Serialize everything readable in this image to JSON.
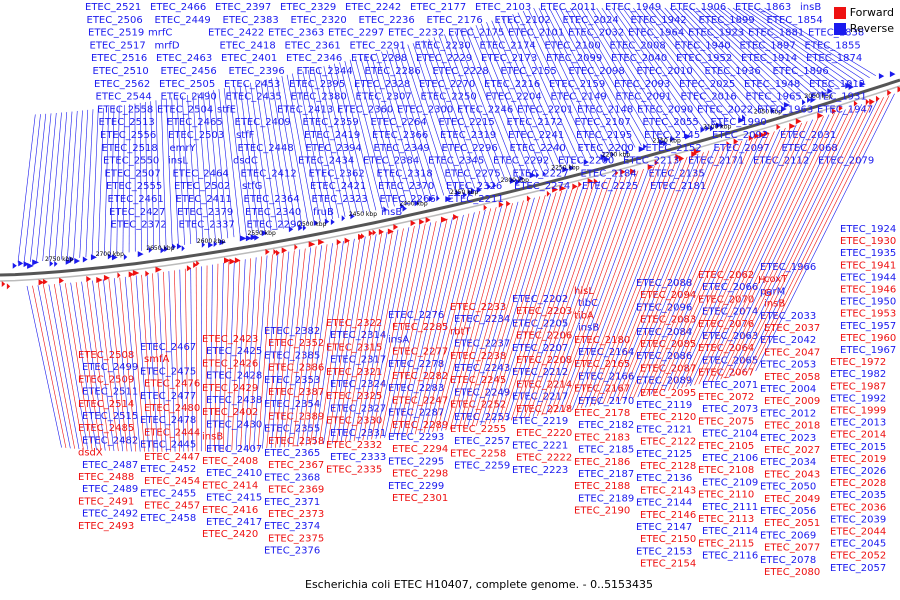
{
  "legend": {
    "forward_label": "Forward",
    "reverse_label": "Reverse",
    "forward_color": "#ee1111",
    "reverse_color": "#1a1aee"
  },
  "caption": "Escherichia coli ETEC H10407, complete genome. - 0..5153435",
  "scale_labels": [
    "2750 kbp",
    "2700 kbp",
    "2650 kbp",
    "2600 kbp",
    "2550 kbp",
    "2500 kbp",
    "2450 kbp",
    "2400 kbp",
    "2350 kbp",
    "2300 kbp",
    "2250 kbp",
    "2200 kbp",
    "2150 kbp",
    "2100 kbp",
    "2050 kbp",
    "2000 kbp"
  ],
  "upper_labels": [
    [
      "ETEC_2521",
      "ETEC_2466",
      "ETEC_2397",
      "ETEC_2329",
      "ETEC_2242",
      "ETEC_2177",
      "ETEC_2103",
      "ETEC_2011",
      "ETEC_1949",
      "ETEC_1906",
      "ETEC_1863",
      "insB"
    ],
    [
      "ETEC_2506",
      "ETEC_2449",
      "ETEC_2383",
      "ETEC_2320",
      "ETEC_2236",
      "ETEC_2176",
      "ETEC_2102",
      "ETEC_2024",
      "ETEC_1942",
      "ETEC_1899",
      "ETEC_1854"
    ],
    [
      "ETEC_2519",
      "mrfC",
      "ETEC_2422",
      "ETEC_2363",
      "ETEC_2297",
      "ETEC_2232",
      "ETEC_2175",
      "ETEC_2101",
      "ETEC_2032",
      "ETEC_1964",
      "ETEC_1923",
      "ETEC_1881",
      "ETEC_1838"
    ],
    [
      "ETEC_2517",
      "mrfD",
      "ETEC_2418",
      "ETEC_2361",
      "ETEC_2291",
      "ETEC_2230",
      "ETEC_2174",
      "ETEC_2100",
      "ETEC_2008",
      "ETEC_1940",
      "ETEC_1897",
      "ETEC_1855"
    ],
    [
      "ETEC_2516",
      "ETEC_2463",
      "ETEC_2401",
      "ETEC_2346",
      "ETEC_2288",
      "ETEC_2229",
      "ETEC_2173",
      "ETEC_2099",
      "ETEC_2040",
      "ETEC_1952",
      "ETEC_1914",
      "ETEC_1874"
    ],
    [
      "ETEC_2510",
      "ETEC_2456",
      "ETEC_2396",
      "ETEC_2344",
      "ETEC_2286",
      "ETEC_2228",
      "ETEC_2155",
      "ETEC_2098",
      "ETEC_2010",
      "ETEC_1936",
      "ETEC_1896"
    ],
    [
      "ETEC_2562",
      "ETEC_2505",
      "ETEC_2453",
      "ETEC_2395",
      "ETEC_2328",
      "ETEC_2270",
      "ETEC_2216",
      "ETEC_2159",
      "ETEC_2093",
      "ETEC_2025",
      "ETEC_1948",
      "ETEC_1912"
    ],
    [
      "ETEC_2544",
      "ETEC_2490",
      "ETEC_2435",
      "ETEC_2380",
      "ETEC_2307",
      "ETEC_2250",
      "ETEC_2204",
      "ETEC_2149",
      "ETEC_2091",
      "ETEC_2016",
      "ETEC_1965",
      "ETEC_1931"
    ],
    [
      "ETEC_2558",
      "ETEC_2504",
      "stfE",
      "ETEC_2413",
      "ETEC_2360",
      "ETEC_2300",
      "ETEC_2246",
      "ETEC_2201",
      "ETEC_2148",
      "ETEC_2090",
      "ETEC_2022",
      "ETEC_1963",
      "ETEC_1947"
    ],
    [
      "ETEC_2513",
      "ETEC_2465",
      "ETEC_2409",
      "ETEC_2359",
      "ETEC_2264",
      "ETEC_2215",
      "ETEC_2172",
      "ETEC_2107",
      "ETEC_2055",
      "ETEC_1990"
    ],
    [
      "ETEC_2556",
      "ETEC_2503",
      "stfF",
      "ETEC_2419",
      "ETEC_2366",
      "ETEC_2319",
      "ETEC_2241",
      "ETEC_2195",
      "ETEC_2145",
      "ETEC_2092",
      "ETEC_2031"
    ],
    [
      "ETEC_2518",
      "emrY",
      "ETEC_2448",
      "ETEC_2394",
      "ETEC_2349",
      "ETEC_2296",
      "ETEC_2240",
      "ETEC_2200",
      "ETEC_2152",
      "ETEC_2097",
      "ETEC_2068"
    ],
    [
      "ETEC_2550",
      "insL",
      "dsdC",
      "ETEC_2434",
      "ETEC_2384",
      "ETEC_2345",
      "ETEC_2292",
      "ETEC_2260",
      "ETEC_2213",
      "ETEC_2171",
      "ETEC_2112",
      "ETEC_2079"
    ],
    [
      "ETEC_2507",
      "ETEC_2464",
      "ETEC_2412",
      "ETEC_2362",
      "ETEC_2318",
      "ETEC_2275",
      "ETEC_2227",
      "ETEC_2184",
      "ETEC_2135"
    ],
    [
      "ETEC_2555",
      "ETEC_2502",
      "stfG",
      "ETEC_2421",
      "ETEC_2370",
      "ETEC_2326",
      "ETEC_2274",
      "ETEC_2225",
      "ETEC_2181"
    ],
    [
      "ETEC_2461",
      "ETEC_2411",
      "ETEC_2364",
      "ETEC_2323",
      "ETEC_2266",
      "ETEC_2211"
    ],
    [
      "ETEC_2427",
      "ETEC_2379",
      "ETEC_2340",
      "fruB",
      "insB"
    ],
    [
      "ETEC_2372",
      "ETEC_2337",
      "ETEC_2290"
    ]
  ],
  "right_labels": [
    "ETEC_1924",
    "ETEC_1930",
    "ETEC_1935",
    "ETEC_1941",
    "ETEC_1944",
    "ETEC_1946",
    "ETEC_1950",
    "ETEC_1953",
    "ETEC_1957",
    "ETEC_1960",
    "ETEC_1967",
    "ETEC_1972",
    "ETEC_1982",
    "ETEC_1987",
    "ETEC_1992",
    "ETEC_1999",
    "ETEC_2013",
    "ETEC_2014",
    "ETEC_2015",
    "ETEC_2019",
    "ETEC_2026",
    "ETEC_2028",
    "ETEC_2035",
    "ETEC_2036",
    "ETEC_2039",
    "ETEC_2044",
    "ETEC_2045",
    "ETEC_2052",
    "ETEC_2057"
  ],
  "lower_labels": [
    [
      "ETEC_1966",
      "coxT",
      "parM",
      "insB",
      "ETEC_2033",
      "ETEC_2037",
      "ETEC_2042",
      "ETEC_2047",
      "ETEC_2053",
      "ETEC_2058",
      "ETEC_2004",
      "ETEC_2009",
      "ETEC_2012",
      "ETEC_2018",
      "ETEC_2023",
      "ETEC_2027",
      "ETEC_2034",
      "ETEC_2043",
      "ETEC_2050",
      "ETEC_2049",
      "ETEC_2056",
      "ETEC_2051",
      "ETEC_2069",
      "ETEC_2077",
      "ETEC_2078",
      "ETEC_2080",
      "ETEC_2081",
      "ETEC_2082"
    ],
    [
      "ETEC_2062",
      "ETEC_2066",
      "ETEC_2070",
      "ETEC_2074",
      "ETEC_2076",
      "ETEC_2063",
      "ETEC_2064",
      "ETEC_2065",
      "ETEC_2067",
      "ETEC_2071",
      "ETEC_2072",
      "ETEC_2073",
      "ETEC_2075",
      "ETEC_2104",
      "ETEC_2105",
      "ETEC_2106",
      "ETEC_2108",
      "ETEC_2109",
      "ETEC_2110",
      "ETEC_2111",
      "ETEC_2113",
      "ETEC_2114",
      "ETEC_2115",
      "ETEC_2116"
    ],
    [
      "ETEC_2088",
      "ETEC_2094",
      "ETEC_2096",
      "ETEC_2083",
      "ETEC_2084",
      "ETEC_2085",
      "ETEC_2086",
      "ETEC_2087",
      "ETEC_2089",
      "ETEC_2095",
      "ETEC_2119",
      "ETEC_2120",
      "ETEC_2121",
      "ETEC_2122",
      "ETEC_2125",
      "ETEC_2128",
      "ETEC_2136",
      "ETEC_2143",
      "ETEC_2144",
      "ETEC_2146",
      "ETEC_2147",
      "ETEC_2150",
      "ETEC_2153",
      "ETEC_2154",
      "ETEC_2156",
      "ETEC_2157",
      "ETEC_2158"
    ],
    [
      "hisL",
      "tibC",
      "tibA",
      "insB",
      "ETEC_2180",
      "ETEC_2164",
      "ETEC_2165",
      "ETEC_2166",
      "ETEC_2167",
      "ETEC_2170",
      "ETEC_2178",
      "ETEC_2182",
      "ETEC_2183",
      "ETEC_2185",
      "ETEC_2186",
      "ETEC_2187",
      "ETEC_2188",
      "ETEC_2189",
      "ETEC_2190"
    ],
    [
      "ETEC_2202",
      "ETEC_2203",
      "ETEC_2205",
      "ETEC_2206",
      "ETEC_2207",
      "ETEC_2208",
      "ETEC_2212",
      "ETEC_2214",
      "ETEC_2217",
      "ETEC_2218",
      "ETEC_2219",
      "ETEC_2220",
      "ETEC_2221",
      "ETEC_2222",
      "ETEC_2223"
    ],
    [
      "ETEC_2233",
      "ETEC_2234",
      "rbtT",
      "ETEC_2237",
      "ETEC_2238",
      "ETEC_2243",
      "ETEC_2245",
      "ETEC_2249",
      "ETEC_2252",
      "ETEC_2253",
      "ETEC_2255",
      "ETEC_2257",
      "ETEC_2258",
      "ETEC_2259"
    ],
    [
      "ETEC_2276",
      "ETEC_2285",
      "insA",
      "ETEC_2277",
      "ETEC_2278",
      "ETEC_2282",
      "ETEC_2283",
      "ETEC_2247",
      "ETEC_2287",
      "ETEC_2289",
      "ETEC_2293",
      "ETEC_2294",
      "ETEC_2295",
      "ETEC_2298",
      "ETEC_2299",
      "ETEC_2301"
    ],
    [
      "ETEC_2322",
      "ETEC_2314",
      "ETEC_2315",
      "ETEC_2317",
      "ETEC_2321",
      "ETEC_2324",
      "ETEC_2325",
      "ETEC_2327",
      "ETEC_2330",
      "ETEC_2331",
      "ETEC_2332",
      "ETEC_2333",
      "ETEC_2335"
    ],
    [
      "ETEC_2382",
      "ETEC_2352",
      "ETEC_2385",
      "ETEC_2386",
      "ETEC_2353",
      "ETEC_2387",
      "ETEC_2354",
      "ETEC_2389",
      "ETEC_2355",
      "ETEC_2358",
      "ETEC_2365",
      "ETEC_2367",
      "ETEC_2368",
      "ETEC_2369",
      "ETEC_2371",
      "ETEC_2373",
      "ETEC_2374",
      "ETEC_2375",
      "ETEC_2376"
    ],
    [
      "ETEC_2423",
      "ETEC_2425",
      "ETEC_2426",
      "ETEC_2428",
      "ETEC_2429",
      "ETEC_2438",
      "ETEC_2402",
      "ETEC_2430",
      "insB",
      "ETEC_2407",
      "ETEC_2408",
      "ETEC_2410",
      "ETEC_2414",
      "ETEC_2415",
      "ETEC_2416",
      "ETEC_2417",
      "ETEC_2420"
    ],
    [
      "ETEC_2467",
      "smfA",
      "ETEC_2475",
      "ETEC_2476",
      "ETEC_2477",
      "ETEC_2480",
      "ETEC_2478",
      "ETEC_2444",
      "ETEC_2445",
      "ETEC_2447",
      "ETEC_2452",
      "ETEC_2454",
      "ETEC_2455",
      "ETEC_2457",
      "ETEC_2458"
    ],
    [
      "ETEC_2508",
      "ETEC_2499",
      "ETEC_2509",
      "ETEC_2511",
      "ETEC_2514",
      "ETEC_2515",
      "ETEC_2485",
      "ETEC_2482",
      "dsdX",
      "ETEC_2487",
      "ETEC_2488",
      "ETEC_2489",
      "ETEC_2491",
      "ETEC_2492",
      "ETEC_2493"
    ]
  ],
  "small_labels": [
    "H",
    "G"
  ]
}
